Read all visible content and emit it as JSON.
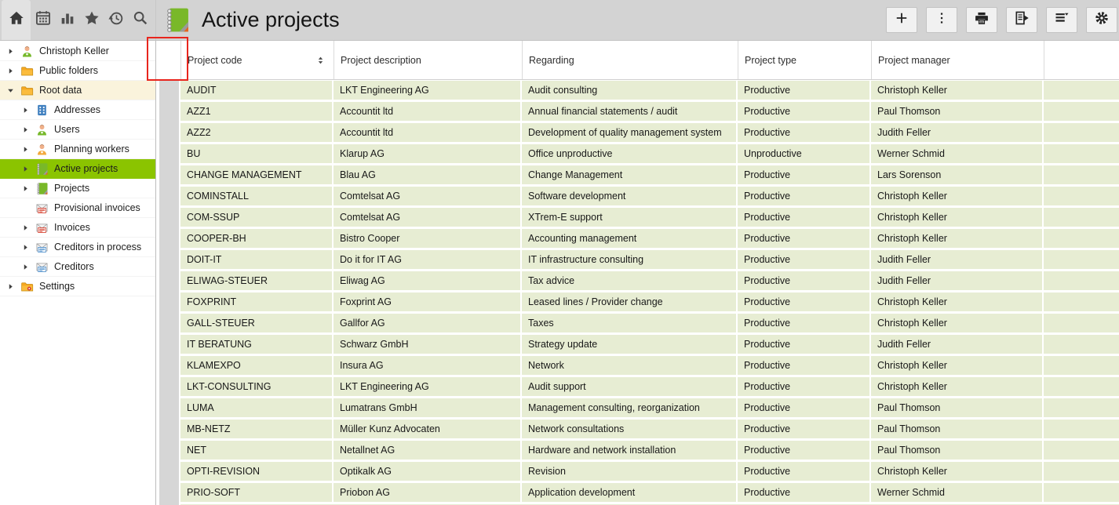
{
  "colors": {
    "selection_green": "#8BC400",
    "row_green": "#E7EDD3",
    "root_highlight": "#FAF3DC",
    "annotation_red": "#E8251D",
    "toolbar_gray": "#D3D3D3"
  },
  "nav_toolbar": {
    "items": [
      {
        "name": "home",
        "icon": "home",
        "active": true
      },
      {
        "name": "calendar",
        "icon": "calendar",
        "active": false
      },
      {
        "name": "statistics",
        "icon": "statistics",
        "active": false
      },
      {
        "name": "favorites",
        "icon": "favorites",
        "active": false
      },
      {
        "name": "history",
        "icon": "history",
        "active": false
      },
      {
        "name": "search",
        "icon": "search",
        "active": false
      }
    ]
  },
  "header": {
    "title": "Active projects",
    "icon": "notebook",
    "actions": [
      {
        "name": "new",
        "icon": "plus"
      },
      {
        "name": "more-options",
        "icon": "kebab"
      },
      {
        "name": "print",
        "icon": "printer"
      },
      {
        "name": "report",
        "icon": "report"
      },
      {
        "name": "view-options",
        "icon": "list-caret"
      },
      {
        "name": "settings",
        "icon": "gear"
      }
    ]
  },
  "sidebar": {
    "items": [
      {
        "label": "Christoph Keller",
        "icon": "user-green",
        "level": 0,
        "expander": "collapsed",
        "selected": false,
        "highlighted": false
      },
      {
        "label": "Public folders",
        "icon": "folder",
        "level": 0,
        "expander": "collapsed",
        "selected": false,
        "highlighted": false
      },
      {
        "label": "Root data",
        "icon": "folder",
        "level": 0,
        "expander": "expanded",
        "selected": false,
        "highlighted": true
      },
      {
        "label": "Addresses",
        "icon": "building",
        "level": 1,
        "expander": "collapsed",
        "selected": false,
        "highlighted": false
      },
      {
        "label": "Users",
        "icon": "user-green",
        "level": 1,
        "expander": "collapsed",
        "selected": false,
        "highlighted": false
      },
      {
        "label": "Planning workers",
        "icon": "user-orange",
        "level": 1,
        "expander": "collapsed",
        "selected": false,
        "highlighted": false
      },
      {
        "label": "Active projects",
        "icon": "notebook",
        "level": 1,
        "expander": "collapsed",
        "selected": true,
        "highlighted": false
      },
      {
        "label": "Projects",
        "icon": "notebook",
        "level": 1,
        "expander": "collapsed",
        "selected": false,
        "highlighted": false
      },
      {
        "label": "Provisional invoices",
        "icon": "invoice-red",
        "level": 1,
        "expander": "none",
        "selected": false,
        "highlighted": false
      },
      {
        "label": "Invoices",
        "icon": "invoice-red",
        "level": 1,
        "expander": "collapsed",
        "selected": false,
        "highlighted": false
      },
      {
        "label": "Creditors in process",
        "icon": "invoice-blue",
        "level": 1,
        "expander": "collapsed",
        "selected": false,
        "highlighted": false
      },
      {
        "label": "Creditors",
        "icon": "invoice-blue",
        "level": 1,
        "expander": "collapsed",
        "selected": false,
        "highlighted": false
      },
      {
        "label": "Settings",
        "icon": "folder-settings",
        "level": 0,
        "expander": "collapsed",
        "selected": false,
        "highlighted": false
      }
    ]
  },
  "table": {
    "columns": [
      {
        "label": "Project code",
        "sorted": true
      },
      {
        "label": "Project description",
        "sorted": false
      },
      {
        "label": "Regarding",
        "sorted": false
      },
      {
        "label": "Project type",
        "sorted": false
      },
      {
        "label": "Project manager",
        "sorted": false
      }
    ],
    "rows": [
      {
        "code": "AUDIT",
        "description": "LKT Engineering AG",
        "regarding": "Audit consulting",
        "type": "Productive",
        "manager": "Christoph Keller"
      },
      {
        "code": "AZZ1",
        "description": "Accountit ltd",
        "regarding": "Annual financial statements / audit",
        "type": "Productive",
        "manager": "Paul Thomson"
      },
      {
        "code": "AZZ2",
        "description": "Accountit ltd",
        "regarding": "Development of quality management system",
        "type": "Productive",
        "manager": "Judith Feller"
      },
      {
        "code": "BU",
        "description": "Klarup AG",
        "regarding": "Office unproductive",
        "type": "Unproductive",
        "manager": "Werner Schmid"
      },
      {
        "code": "CHANGE MANAGEMENT",
        "description": "Blau AG",
        "regarding": "Change Management",
        "type": "Productive",
        "manager": "Lars Sorenson"
      },
      {
        "code": "COMINSTALL",
        "description": "Comtelsat AG",
        "regarding": "Software development",
        "type": "Productive",
        "manager": "Christoph Keller"
      },
      {
        "code": "COM-SSUP",
        "description": "Comtelsat AG",
        "regarding": "XTrem-E support",
        "type": "Productive",
        "manager": "Christoph Keller"
      },
      {
        "code": "COOPER-BH",
        "description": "Bistro Cooper",
        "regarding": "Accounting management",
        "type": "Productive",
        "manager": "Christoph Keller"
      },
      {
        "code": "DOIT-IT",
        "description": "Do it for IT AG",
        "regarding": "IT infrastructure consulting",
        "type": "Productive",
        "manager": "Judith Feller"
      },
      {
        "code": "ELIWAG-STEUER",
        "description": "Eliwag AG",
        "regarding": "Tax advice",
        "type": "Productive",
        "manager": "Judith Feller"
      },
      {
        "code": "FOXPRINT",
        "description": "Foxprint AG",
        "regarding": "Leased lines / Provider change",
        "type": "Productive",
        "manager": "Christoph Keller"
      },
      {
        "code": "GALL-STEUER",
        "description": "Gallfor AG",
        "regarding": "Taxes",
        "type": "Productive",
        "manager": "Christoph Keller"
      },
      {
        "code": "IT BERATUNG",
        "description": "Schwarz GmbH",
        "regarding": "Strategy update",
        "type": "Productive",
        "manager": "Judith Feller"
      },
      {
        "code": "KLAMEXPO",
        "description": "Insura AG",
        "regarding": "Network",
        "type": "Productive",
        "manager": "Christoph Keller"
      },
      {
        "code": "LKT-CONSULTING",
        "description": "LKT Engineering AG",
        "regarding": "Audit support",
        "type": "Productive",
        "manager": "Christoph Keller"
      },
      {
        "code": "LUMA",
        "description": "Lumatrans GmbH",
        "regarding": "Management consulting, reorganization",
        "type": "Productive",
        "manager": "Paul Thomson"
      },
      {
        "code": "MB-NETZ",
        "description": "Müller Kunz Advocaten",
        "regarding": "Network consultations",
        "type": "Productive",
        "manager": "Paul Thomson"
      },
      {
        "code": "NET",
        "description": "Netallnet AG",
        "regarding": "Hardware and network installation",
        "type": "Productive",
        "manager": "Paul Thomson"
      },
      {
        "code": "OPTI-REVISION",
        "description": "Optikalk AG",
        "regarding": "Revision",
        "type": "Productive",
        "manager": "Christoph Keller"
      },
      {
        "code": "PRIO-SOFT",
        "description": "Priobon AG",
        "regarding": "Application development",
        "type": "Productive",
        "manager": "Werner Schmid"
      }
    ]
  },
  "annotation": {
    "type": "highlight-rectangle",
    "color": "#E8251D"
  }
}
